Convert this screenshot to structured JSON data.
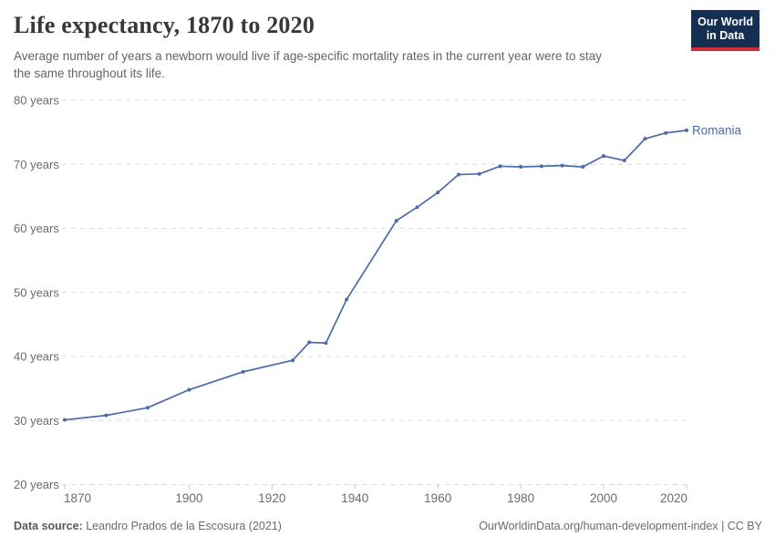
{
  "header": {
    "title": "Life expectancy, 1870 to 2020",
    "subtitle_line1": "Average number of years a newborn would live if age-specific mortality rates in the current year were to stay",
    "subtitle_line2": "the same throughout its life.",
    "logo": {
      "line1": "Our World",
      "line2": "in Data",
      "bg_color": "#142f52",
      "accent_color": "#cf2f3b"
    }
  },
  "chart_data": {
    "type": "line",
    "title": "Life expectancy, 1870 to 2020",
    "entity_label": "Romania",
    "unit": "years",
    "x": [
      1870,
      1880,
      1890,
      1900,
      1913,
      1925,
      1929,
      1933,
      1938,
      1950,
      1955,
      1960,
      1965,
      1970,
      1975,
      1980,
      1985,
      1990,
      1995,
      2000,
      2005,
      2010,
      2015,
      2020
    ],
    "series": [
      {
        "name": "Romania",
        "color": "#4a6aa8",
        "values": [
          30.1,
          30.8,
          32.0,
          34.8,
          37.6,
          39.4,
          42.2,
          42.1,
          48.9,
          61.2,
          63.3,
          65.6,
          68.4,
          68.5,
          69.7,
          69.6,
          69.7,
          69.8,
          69.6,
          71.3,
          70.6,
          74.0,
          74.9,
          75.3
        ]
      }
    ],
    "xlim": [
      1870,
      2020
    ],
    "ylim": [
      20,
      80
    ],
    "xticks": [
      1870,
      1900,
      1920,
      1940,
      1960,
      1980,
      2000,
      2020
    ],
    "yticks": [
      {
        "value": 80,
        "label": "80 years"
      },
      {
        "value": 70,
        "label": "70 years"
      },
      {
        "value": 60,
        "label": "60 years"
      },
      {
        "value": 50,
        "label": "50 years"
      },
      {
        "value": 40,
        "label": "40 years"
      },
      {
        "value": 30,
        "label": "30 years"
      },
      {
        "value": 20,
        "label": "20 years"
      }
    ],
    "grid": "horizontal-dashed",
    "legend_position": "line-end-label",
    "colors": {
      "gridline": "#dcdcdc",
      "tick": "#c4c4c4",
      "axis_text": "#6b6b6b"
    }
  },
  "footer": {
    "source_label": "Data source:",
    "source_text": "Leandro Prados de la Escosura (2021)",
    "right_text": "OurWorldinData.org/human-development-index | CC BY"
  }
}
